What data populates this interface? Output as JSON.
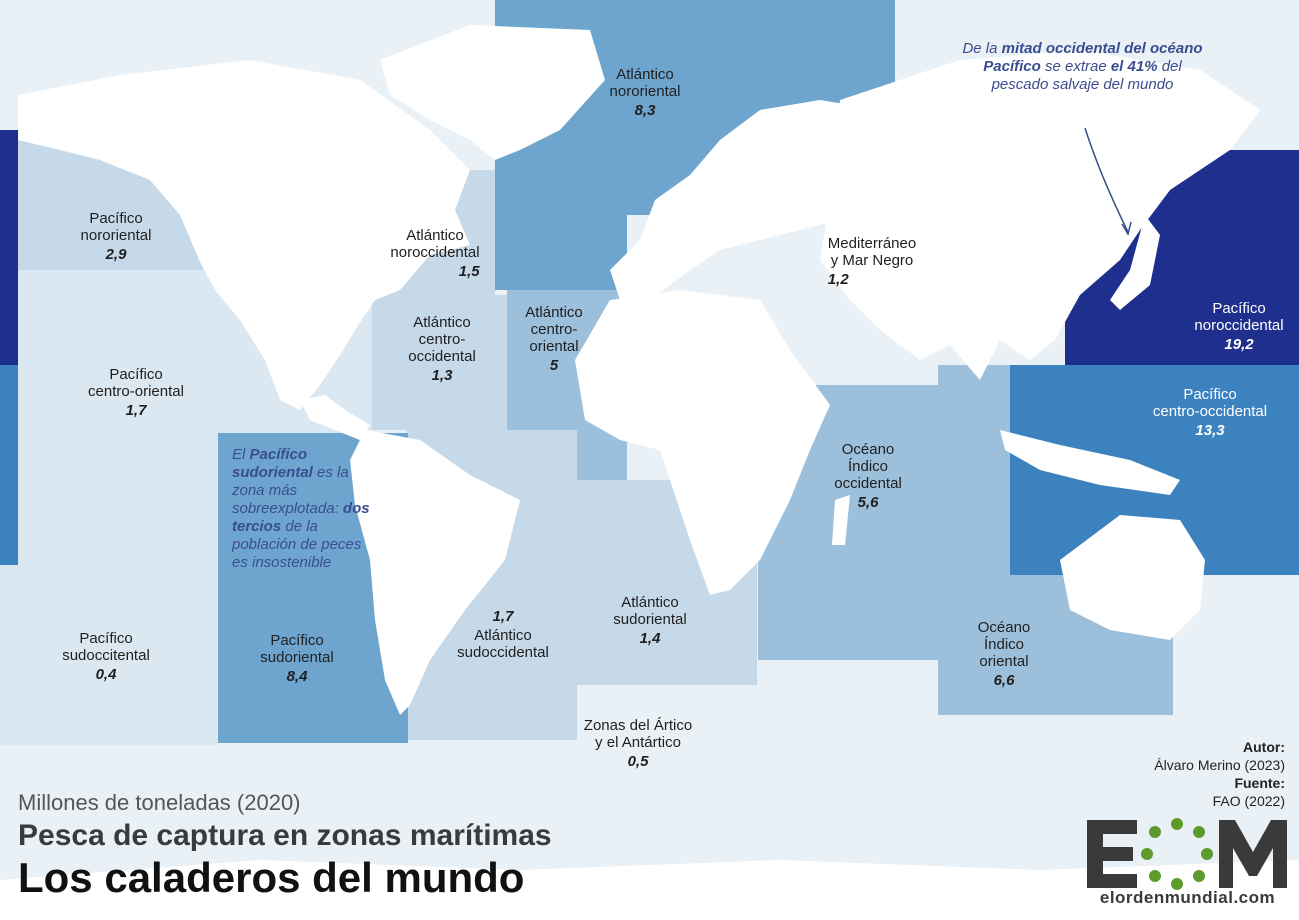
{
  "title": "Los caladeros del mundo",
  "subtitle": "Pesca de captura en zonas marítimas",
  "units": "Millones de toneladas (2020)",
  "colors": {
    "ocean": "#e9f1f7",
    "land": "#ffffff",
    "scale": [
      "#dce8f1",
      "#c6d9e9",
      "#9cc0dc",
      "#6ea5cf",
      "#3c82bf",
      "#1f2f8e"
    ],
    "note_text": "#3a4d8f",
    "logo_green": "#5f9a2e"
  },
  "zones": [
    {
      "name_lines": [
        "Atlántico",
        "nororiental"
      ],
      "value": "8,3"
    },
    {
      "name_lines": [
        "Pacífico",
        "nororiental"
      ],
      "value": "2,9"
    },
    {
      "name_lines": [
        "Atlántico",
        "noroccidental"
      ],
      "value": "1,5"
    },
    {
      "name_lines": [
        "Mediterráneo",
        "y Mar Negro"
      ],
      "value": "1,2"
    },
    {
      "name_lines": [
        "Pacífico",
        "noroccidental"
      ],
      "value": "19,2"
    },
    {
      "name_lines": [
        "Pacífico",
        "centro-oriental"
      ],
      "value": "1,7"
    },
    {
      "name_lines": [
        "Atlántico",
        "centro-",
        "occidental"
      ],
      "value": "1,3"
    },
    {
      "name_lines": [
        "Atlántico",
        "centro-",
        "oriental"
      ],
      "value": "5"
    },
    {
      "name_lines": [
        "Pacífico",
        "centro-occidental"
      ],
      "value": "13,3"
    },
    {
      "name_lines": [
        "Océano",
        "Índico",
        "occidental"
      ],
      "value": "5,6"
    },
    {
      "name_lines": [
        "Atlántico",
        "sudoriental"
      ],
      "value": "1,4"
    },
    {
      "name_lines": [
        "Atlántico",
        "sudoccidental"
      ],
      "value": "1,7"
    },
    {
      "name_lines": [
        "Pacífico",
        "sudoccitental"
      ],
      "value": "0,4"
    },
    {
      "name_lines": [
        "Pacífico",
        "sudoriental"
      ],
      "value": "8,4"
    },
    {
      "name_lines": [
        "Océano",
        "Índico",
        "oriental"
      ],
      "value": "6,6"
    },
    {
      "name_lines": [
        "Zonas del Ártico",
        "y el Antártico"
      ],
      "value": "0,5"
    }
  ],
  "notes": {
    "northwest_pacific": {
      "t1": "De la ",
      "b1": "mitad occidental",
      "t2": " ",
      "b2": "del océano Pacífico",
      "t3": " se extrae ",
      "b3": "el 41%",
      "t4": " del pescado salvaje del mundo"
    },
    "southeast_pacific": {
      "t1": "El ",
      "b1": "Pacífico sudoriental",
      "t2": " es la zona más sobreexplotada: ",
      "b2": "dos tercios",
      "t3": " de la población de peces es insostenible"
    }
  },
  "credits": {
    "author_label": "Autor:",
    "author": "Álvaro Merino (2023)",
    "source_label": "Fuente:",
    "source": "FAO (2022)"
  },
  "logo": {
    "url": "elordenmundial.com"
  }
}
